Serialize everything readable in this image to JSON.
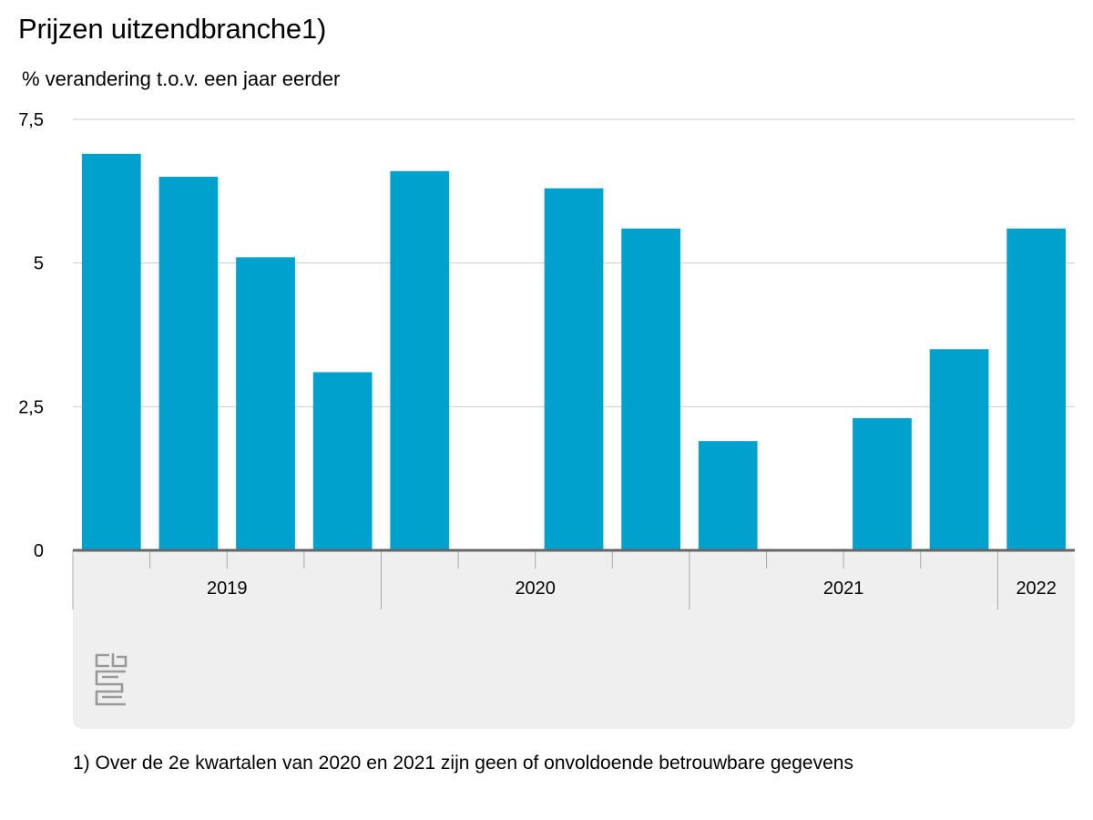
{
  "title": "Prijzen uitzendbranche1)",
  "subtitle": "% verandering t.o.v. een jaar eerder",
  "footnote": "1) Over de 2e kwartalen van 2020 en 2021 zijn geen of onvoldoende betrouwbare gegevens",
  "colors": {
    "bar": "#00a1cd",
    "grid": "#cccccc",
    "axis": "#666666",
    "footer_bg": "#efefef",
    "logo": "#999999"
  },
  "logo_icon": "cbs-logo-icon",
  "chart_data": {
    "type": "bar",
    "quarters": [
      "2019 K1",
      "2019 K2",
      "2019 K3",
      "2019 K4",
      "2020 K1",
      "2020 K2",
      "2020 K3",
      "2020 K4",
      "2021 K1",
      "2021 K2",
      "2021 K3",
      "2021 K4",
      "2022 K1"
    ],
    "values": [
      6.9,
      6.5,
      5.1,
      3.1,
      6.6,
      null,
      6.3,
      5.6,
      1.9,
      null,
      2.3,
      3.5,
      5.6
    ],
    "year_labels": [
      {
        "label": "2019",
        "start": 0,
        "count": 4
      },
      {
        "label": "2020",
        "start": 4,
        "count": 4
      },
      {
        "label": "2021",
        "start": 8,
        "count": 4
      },
      {
        "label": "2022",
        "start": 12,
        "count": 1
      }
    ],
    "ylim": [
      0,
      7.5
    ],
    "yticks": [
      0,
      2.5,
      5,
      7.5
    ],
    "ytick_labels": [
      "0",
      "2,5",
      "5",
      "7,5"
    ],
    "grid": true,
    "xlabel": "",
    "ylabel": ""
  }
}
